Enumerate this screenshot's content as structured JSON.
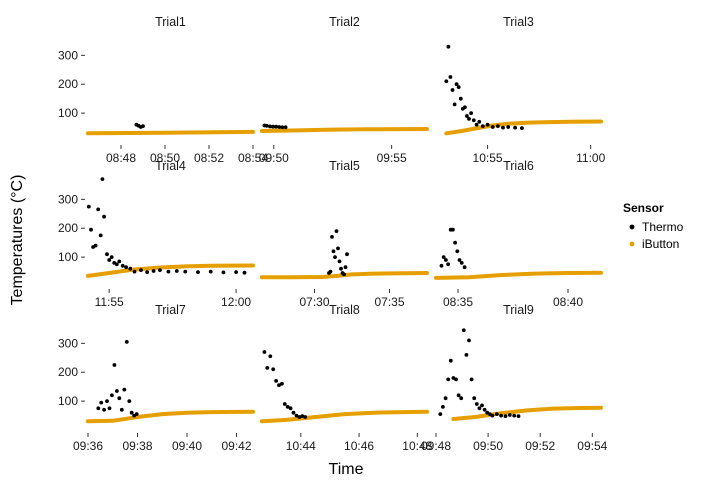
{
  "chart_data": {
    "type": "scatter",
    "xlabel": "Time",
    "ylabel": "Temperatures (°C)",
    "ylim": [
      0,
      360
    ],
    "yticks": [
      100,
      200,
      300
    ],
    "grid": false,
    "legend": {
      "title": "Sensor",
      "placement": "right",
      "entries": [
        {
          "name": "Thermo",
          "color": "#000000"
        },
        {
          "name": "iButton",
          "color": "#E69F00"
        }
      ]
    },
    "facets": [
      {
        "title": "Trial1",
        "xlim": [
          "08:46:30",
          "08:54:00"
        ],
        "xticks": [
          "08:48",
          "08:50",
          "08:52",
          "08:54"
        ],
        "ibutton": [
          [
            "08:46:30",
            30
          ],
          [
            "08:50:00",
            32
          ],
          [
            "08:54:00",
            35
          ]
        ],
        "thermo": [
          [
            "08:48:42",
            60
          ],
          [
            "08:48:48",
            56
          ],
          [
            "08:48:54",
            52
          ],
          [
            "08:49:00",
            55
          ]
        ]
      },
      {
        "title": "Trial2",
        "xlim": [
          "09:49:30",
          "09:56:30"
        ],
        "xticks": [
          "09:50",
          "09:55"
        ],
        "ibutton": [
          [
            "09:49:30",
            38
          ],
          [
            "09:51:00",
            40
          ],
          [
            "09:52:30",
            43
          ],
          [
            "09:54:00",
            44
          ],
          [
            "09:56:30",
            45
          ]
        ],
        "thermo": [
          [
            "09:49:36",
            57
          ],
          [
            "09:49:42",
            56
          ],
          [
            "09:49:50",
            54
          ],
          [
            "09:49:58",
            53
          ],
          [
            "09:50:06",
            53
          ],
          [
            "09:50:14",
            52
          ],
          [
            "09:50:22",
            51
          ],
          [
            "09:50:30",
            51
          ]
        ]
      },
      {
        "title": "Trial3",
        "xlim": [
          "10:52:30",
          "11:00:30"
        ],
        "xticks": [
          "10:55",
          "11:00"
        ],
        "ibutton": [
          [
            "10:53:00",
            30
          ],
          [
            "10:53:45",
            38
          ],
          [
            "10:54:30",
            48
          ],
          [
            "10:55:15",
            57
          ],
          [
            "10:56:00",
            63
          ],
          [
            "10:57:00",
            67
          ],
          [
            "10:58:00",
            69
          ],
          [
            "10:59:00",
            70
          ],
          [
            "11:00:30",
            71
          ]
        ],
        "thermo": [
          [
            "10:53:00",
            210
          ],
          [
            "10:53:06",
            330
          ],
          [
            "10:53:12",
            225
          ],
          [
            "10:53:18",
            180
          ],
          [
            "10:53:24",
            130
          ],
          [
            "10:53:30",
            200
          ],
          [
            "10:53:36",
            190
          ],
          [
            "10:53:42",
            150
          ],
          [
            "10:53:48",
            115
          ],
          [
            "10:53:54",
            120
          ],
          [
            "10:54:00",
            90
          ],
          [
            "10:54:06",
            80
          ],
          [
            "10:54:12",
            100
          ],
          [
            "10:54:20",
            75
          ],
          [
            "10:54:28",
            60
          ],
          [
            "10:54:36",
            70
          ],
          [
            "10:54:46",
            55
          ],
          [
            "10:55:00",
            60
          ],
          [
            "10:55:15",
            52
          ],
          [
            "10:55:30",
            55
          ],
          [
            "10:55:45",
            50
          ],
          [
            "10:56:00",
            52
          ],
          [
            "10:56:20",
            50
          ],
          [
            "10:56:40",
            48
          ]
        ]
      },
      {
        "title": "Trial4",
        "xlim": [
          "11:54:10",
          "12:00:40"
        ],
        "xticks": [
          "11:55",
          "12:00"
        ],
        "ibutton": [
          [
            "11:54:10",
            35
          ],
          [
            "11:55:00",
            45
          ],
          [
            "11:56:00",
            57
          ],
          [
            "11:57:00",
            64
          ],
          [
            "11:58:00",
            68
          ],
          [
            "11:59:00",
            70
          ],
          [
            "12:00:40",
            71
          ]
        ],
        "thermo": [
          [
            "11:54:12",
            275
          ],
          [
            "11:54:17",
            195
          ],
          [
            "11:54:22",
            135
          ],
          [
            "11:54:28",
            140
          ],
          [
            "11:54:34",
            265
          ],
          [
            "11:54:40",
            175
          ],
          [
            "11:54:44",
            370
          ],
          [
            "11:54:48",
            240
          ],
          [
            "11:54:55",
            110
          ],
          [
            "11:55:00",
            90
          ],
          [
            "11:55:06",
            100
          ],
          [
            "11:55:12",
            80
          ],
          [
            "11:55:18",
            75
          ],
          [
            "11:55:24",
            85
          ],
          [
            "11:55:32",
            70
          ],
          [
            "11:55:40",
            65
          ],
          [
            "11:55:50",
            60
          ],
          [
            "11:56:00",
            50
          ],
          [
            "11:56:15",
            55
          ],
          [
            "11:56:30",
            48
          ],
          [
            "11:56:45",
            52
          ],
          [
            "11:57:00",
            55
          ],
          [
            "11:57:20",
            50
          ],
          [
            "11:57:40",
            52
          ],
          [
            "11:58:00",
            50
          ],
          [
            "11:58:30",
            48
          ],
          [
            "11:59:00",
            50
          ],
          [
            "11:59:30",
            47
          ],
          [
            "12:00:00",
            48
          ],
          [
            "12:00:20",
            46
          ]
        ]
      },
      {
        "title": "Trial5",
        "xlim": [
          "07:26:30",
          "07:37:30"
        ],
        "xticks": [
          "07:30",
          "07:35"
        ],
        "ibutton": [
          [
            "07:26:30",
            30
          ],
          [
            "07:28:30",
            30
          ],
          [
            "07:30:30",
            31
          ],
          [
            "07:31:30",
            35
          ],
          [
            "07:32:30",
            40
          ],
          [
            "07:34:00",
            43
          ],
          [
            "07:37:30",
            45
          ]
        ],
        "thermo": [
          [
            "07:31:10",
            170
          ],
          [
            "07:31:16",
            120
          ],
          [
            "07:31:22",
            100
          ],
          [
            "07:31:28",
            190
          ],
          [
            "07:31:34",
            130
          ],
          [
            "07:31:40",
            85
          ],
          [
            "07:31:46",
            60
          ],
          [
            "07:31:52",
            45
          ],
          [
            "07:31:58",
            40
          ],
          [
            "07:32:04",
            65
          ],
          [
            "07:32:10",
            110
          ],
          [
            "07:31:04",
            50
          ],
          [
            "07:30:58",
            45
          ]
        ]
      },
      {
        "title": "Trial6",
        "xlim": [
          "08:34:00",
          "08:41:30"
        ],
        "xticks": [
          "08:35",
          "08:40"
        ],
        "ibutton": [
          [
            "08:34:00",
            28
          ],
          [
            "08:35:30",
            30
          ],
          [
            "08:37:00",
            38
          ],
          [
            "08:38:30",
            43
          ],
          [
            "08:40:00",
            45
          ],
          [
            "08:41:30",
            46
          ]
        ],
        "thermo": [
          [
            "08:34:15",
            70
          ],
          [
            "08:34:21",
            100
          ],
          [
            "08:34:27",
            90
          ],
          [
            "08:34:33",
            75
          ],
          [
            "08:34:40",
            195
          ],
          [
            "08:34:46",
            195
          ],
          [
            "08:34:52",
            150
          ],
          [
            "08:34:58",
            120
          ],
          [
            "08:35:04",
            90
          ],
          [
            "08:35:10",
            80
          ],
          [
            "08:35:18",
            65
          ]
        ]
      },
      {
        "title": "Trial7",
        "xlim": [
          "09:36:00",
          "09:42:40"
        ],
        "xticks": [
          "09:36",
          "09:38",
          "09:40",
          "09:42"
        ],
        "ibutton": [
          [
            "09:36:00",
            30
          ],
          [
            "09:37:00",
            32
          ],
          [
            "09:38:00",
            45
          ],
          [
            "09:39:00",
            55
          ],
          [
            "09:40:00",
            60
          ],
          [
            "09:41:00",
            62
          ],
          [
            "09:42:40",
            63
          ]
        ],
        "thermo": [
          [
            "09:36:25",
            75
          ],
          [
            "09:36:32",
            95
          ],
          [
            "09:36:39",
            70
          ],
          [
            "09:36:46",
            100
          ],
          [
            "09:36:52",
            75
          ],
          [
            "09:36:58",
            120
          ],
          [
            "09:37:04",
            225
          ],
          [
            "09:37:10",
            135
          ],
          [
            "09:37:16",
            110
          ],
          [
            "09:37:22",
            70
          ],
          [
            "09:37:28",
            140
          ],
          [
            "09:37:34",
            305
          ],
          [
            "09:37:40",
            100
          ],
          [
            "09:37:46",
            60
          ],
          [
            "09:37:52",
            50
          ],
          [
            "09:37:58",
            55
          ]
        ]
      },
      {
        "title": "Trial8",
        "xlim": [
          "10:42:40",
          "10:48:20"
        ],
        "xticks": [
          "10:44",
          "10:46",
          "10:48"
        ],
        "ibutton": [
          [
            "10:42:40",
            30
          ],
          [
            "10:43:30",
            35
          ],
          [
            "10:44:30",
            45
          ],
          [
            "10:45:30",
            55
          ],
          [
            "10:46:30",
            60
          ],
          [
            "10:47:30",
            62
          ],
          [
            "10:48:20",
            63
          ]
        ],
        "thermo": [
          [
            "10:42:45",
            270
          ],
          [
            "10:42:51",
            215
          ],
          [
            "10:42:57",
            255
          ],
          [
            "10:43:03",
            210
          ],
          [
            "10:43:09",
            170
          ],
          [
            "10:43:15",
            155
          ],
          [
            "10:43:21",
            160
          ],
          [
            "10:43:27",
            90
          ],
          [
            "10:43:33",
            80
          ],
          [
            "10:43:39",
            75
          ],
          [
            "10:43:45",
            60
          ],
          [
            "10:43:51",
            50
          ],
          [
            "10:43:57",
            45
          ],
          [
            "10:44:03",
            48
          ],
          [
            "10:44:09",
            45
          ]
        ]
      },
      {
        "title": "Trial9",
        "xlim": [
          "09:48:00",
          "09:54:20"
        ],
        "xticks": [
          "09:48",
          "09:50",
          "09:52",
          "09:54"
        ],
        "ibutton": [
          [
            "09:48:40",
            38
          ],
          [
            "09:49:30",
            45
          ],
          [
            "09:50:30",
            58
          ],
          [
            "09:51:30",
            68
          ],
          [
            "09:52:30",
            74
          ],
          [
            "09:53:30",
            76
          ],
          [
            "09:54:20",
            77
          ]
        ],
        "thermo": [
          [
            "09:48:10",
            55
          ],
          [
            "09:48:16",
            80
          ],
          [
            "09:48:22",
            110
          ],
          [
            "09:48:28",
            175
          ],
          [
            "09:48:34",
            240
          ],
          [
            "09:48:40",
            180
          ],
          [
            "09:48:46",
            175
          ],
          [
            "09:48:52",
            120
          ],
          [
            "09:48:58",
            110
          ],
          [
            "09:49:04",
            345
          ],
          [
            "09:49:10",
            260
          ],
          [
            "09:49:16",
            310
          ],
          [
            "09:49:22",
            175
          ],
          [
            "09:49:28",
            110
          ],
          [
            "09:49:34",
            90
          ],
          [
            "09:49:40",
            75
          ],
          [
            "09:49:46",
            85
          ],
          [
            "09:49:52",
            70
          ],
          [
            "09:49:58",
            60
          ],
          [
            "09:50:04",
            55
          ],
          [
            "09:50:10",
            50
          ],
          [
            "09:50:20",
            55
          ],
          [
            "09:50:30",
            50
          ],
          [
            "09:50:40",
            48
          ],
          [
            "09:50:50",
            52
          ],
          [
            "09:51:00",
            50
          ],
          [
            "09:51:10",
            48
          ]
        ]
      }
    ]
  }
}
